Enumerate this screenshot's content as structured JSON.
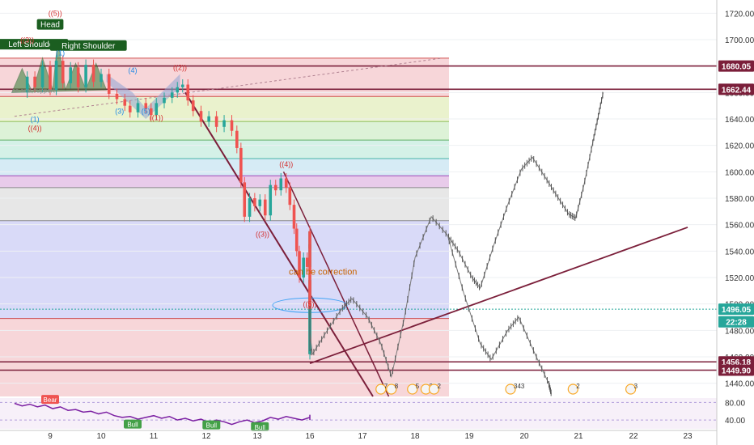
{
  "chart_data": {
    "type": "line",
    "title": "",
    "colors": {
      "up": "#26a69a",
      "down": "#ef5350",
      "wave_red": "#d32f2f",
      "wave_blue": "#1e88e5",
      "channel": "#7b1f3a",
      "level": "#7b1f3a",
      "projection": "#7a7a7a",
      "price_line": "#26a69a",
      "rsi": "#7b1fa2",
      "pattern_fill": "#2e7d32",
      "grid": "#eef0f3",
      "axis_text": "#333333"
    },
    "x_axis": {
      "type": "date",
      "ticks": [
        {
          "label": "9",
          "day": 9
        },
        {
          "label": "10",
          "day": 10
        },
        {
          "label": "11",
          "day": 11
        },
        {
          "label": "12",
          "day": 12
        },
        {
          "label": "13",
          "day": 13
        },
        {
          "label": "16",
          "day": 16
        },
        {
          "label": "17",
          "day": 17
        },
        {
          "label": "18",
          "day": 18
        },
        {
          "label": "19",
          "day": 19
        },
        {
          "label": "20",
          "day": 20
        },
        {
          "label": "21",
          "day": 21
        },
        {
          "label": "22",
          "day": 22
        },
        {
          "label": "23",
          "day": 23
        }
      ]
    },
    "y_axis": {
      "range": [
        1430,
        1730
      ],
      "ticks": [
        "1440.00",
        "1460.00",
        "1480.00",
        "1500.00",
        "1520.00",
        "1540.00",
        "1560.00",
        "1580.00",
        "1600.00",
        "1620.00",
        "1640.00",
        "1660.00",
        "1680.00",
        "1700.00",
        "1720.00"
      ]
    },
    "rsi_axis": {
      "range": [
        20,
        90
      ],
      "ticks": [
        "80.00",
        "40.00"
      ]
    },
    "price_labels": [
      {
        "text": "1680.05",
        "value": 1680.05,
        "style": "level"
      },
      {
        "text": "1662.44",
        "value": 1662.44,
        "style": "level"
      },
      {
        "text": "1496.05",
        "value": 1496.05,
        "style": "current"
      },
      {
        "text": "22:28",
        "value": 1486.5,
        "style": "current"
      },
      {
        "text": "1456.18",
        "value": 1456.18,
        "style": "level"
      },
      {
        "text": "1449.90",
        "value": 1449.9,
        "style": "level"
      }
    ],
    "horizontal_levels": [
      1680.05,
      1662.44,
      1456.18,
      1449.9
    ],
    "fib_bands": [
      {
        "from": 1657,
        "to": 1686,
        "color": "#f6cfd2"
      },
      {
        "from": 1638,
        "to": 1657,
        "color": "#e6f0c4"
      },
      {
        "from": 1624,
        "to": 1638,
        "color": "#d7f0d0"
      },
      {
        "from": 1610,
        "to": 1624,
        "color": "#cdeee3"
      },
      {
        "from": 1597,
        "to": 1610,
        "color": "#cfe7f3"
      },
      {
        "from": 1588,
        "to": 1597,
        "color": "#e4c2e6"
      },
      {
        "from": 1563,
        "to": 1588,
        "color": "#e3e3e3"
      },
      {
        "from": 1489,
        "to": 1563,
        "color": "#d2d4f7"
      },
      {
        "from": 1430,
        "to": 1489,
        "color": "#f6cfd2"
      }
    ],
    "fib_lines": [
      1686,
      1657,
      1638,
      1624,
      1610,
      1597,
      1588,
      1563,
      1489
    ],
    "series": [
      {
        "values": [
          [
            8.4,
            1660
          ],
          [
            8.55,
            1672
          ],
          [
            8.7,
            1664
          ],
          [
            8.85,
            1680
          ],
          [
            9.0,
            1662
          ],
          [
            9.12,
            1684
          ],
          [
            9.25,
            1667
          ],
          [
            9.4,
            1679
          ],
          [
            9.55,
            1664
          ],
          [
            9.7,
            1681
          ],
          [
            9.85,
            1668
          ],
          [
            10.0,
            1674
          ],
          [
            10.15,
            1659
          ],
          [
            10.3,
            1655
          ],
          [
            10.45,
            1650
          ],
          [
            10.55,
            1645
          ],
          [
            10.7,
            1652
          ],
          [
            10.85,
            1648
          ],
          [
            10.95,
            1643
          ],
          [
            11.05,
            1652
          ],
          [
            11.2,
            1656
          ],
          [
            11.35,
            1660
          ],
          [
            11.45,
            1664
          ],
          [
            11.55,
            1666
          ],
          [
            11.65,
            1654
          ],
          [
            11.75,
            1646
          ],
          [
            11.9,
            1638
          ],
          [
            12.05,
            1642
          ],
          [
            12.2,
            1634
          ],
          [
            12.35,
            1639
          ],
          [
            12.5,
            1631
          ],
          [
            12.6,
            1618
          ],
          [
            12.68,
            1592
          ],
          [
            12.75,
            1566
          ],
          [
            12.85,
            1580
          ],
          [
            12.95,
            1574
          ],
          [
            13.05,
            1579
          ],
          [
            13.15,
            1567
          ],
          [
            13.25,
            1590
          ],
          [
            13.35,
            1586
          ],
          [
            13.45,
            1595
          ],
          [
            13.55,
            1588
          ],
          [
            13.62,
            1575
          ],
          [
            13.7,
            1557
          ],
          [
            13.75,
            1540
          ],
          [
            13.8,
            1520
          ],
          [
            13.88,
            1535
          ],
          [
            13.95,
            1528
          ],
          [
            14.05,
            1555
          ],
          [
            14.15,
            1542
          ],
          [
            14.25,
            1545
          ],
          [
            14.35,
            1530
          ],
          [
            14.5,
            1522
          ],
          [
            14.58,
            1510
          ],
          [
            14.65,
            1485
          ],
          [
            14.7,
            1462
          ],
          [
            14.78,
            1478
          ],
          [
            14.85,
            1492
          ],
          [
            14.95,
            1508
          ],
          [
            15.05,
            1498
          ],
          [
            15.12,
            1513
          ],
          [
            15.2,
            1518
          ],
          [
            15.3,
            1505
          ],
          [
            15.4,
            1497
          ],
          [
            15.5,
            1492
          ],
          [
            15.6,
            1493
          ],
          [
            15.7,
            1496
          ]
        ]
      }
    ],
    "projection": [
      [
        15.45,
        1498
      ],
      [
        15.8,
        1478
      ],
      [
        16.05,
        1462
      ],
      [
        16.3,
        1478
      ],
      [
        16.6,
        1496
      ],
      [
        16.8,
        1504
      ],
      [
        17.1,
        1490
      ],
      [
        17.35,
        1470
      ],
      [
        17.55,
        1445
      ],
      [
        17.8,
        1490
      ],
      [
        18.0,
        1535
      ],
      [
        18.3,
        1566
      ],
      [
        18.6,
        1552
      ],
      [
        18.8,
        1540
      ],
      [
        19.05,
        1520
      ],
      [
        19.2,
        1512
      ],
      [
        19.45,
        1545
      ],
      [
        19.7,
        1575
      ],
      [
        19.95,
        1602
      ],
      [
        20.15,
        1611
      ],
      [
        20.4,
        1595
      ],
      [
        20.6,
        1582
      ],
      [
        20.82,
        1568
      ],
      [
        20.95,
        1565
      ],
      [
        21.1,
        1590
      ],
      [
        21.25,
        1620
      ],
      [
        21.35,
        1640
      ],
      [
        21.45,
        1660
      ]
    ],
    "down_projection": [
      [
        18.6,
        1552
      ],
      [
        18.9,
        1508
      ],
      [
        19.2,
        1470
      ],
      [
        19.4,
        1458
      ],
      [
        19.7,
        1480
      ],
      [
        19.9,
        1490
      ],
      [
        20.2,
        1462
      ],
      [
        20.45,
        1440
      ],
      [
        20.5,
        1432
      ]
    ],
    "channel": {
      "upper": [
        [
          11.6,
          1660
        ],
        [
          17.2,
          1430
        ]
      ],
      "lower": [
        [
          13.5,
          1600
        ],
        [
          17.5,
          1430
        ]
      ],
      "rising": [
        [
          15.5,
          1455
        ],
        [
          23.0,
          1558
        ]
      ],
      "dotted": [
        [
          8.3,
          1642
        ],
        [
          18.5,
          1686
        ]
      ]
    },
    "annotations": [
      {
        "text": "can be correction",
        "x": 16.25,
        "y": 1522,
        "color": "#c86400"
      },
      {
        "text": "((4))",
        "x": 13.55,
        "y": 1604,
        "color": "#d32f2f"
      },
      {
        "text": "((3))",
        "x": 13.1,
        "y": 1551,
        "color": "#d32f2f"
      },
      {
        "text": "((5))",
        "x": 14.55,
        "y": 1498,
        "color": "#d32f2f"
      },
      {
        "text": "((2))",
        "x": 11.5,
        "y": 1677,
        "color": "#d32f2f"
      },
      {
        "text": "((1))",
        "x": 11.05,
        "y": 1639,
        "color": "#d32f2f"
      },
      {
        "text": "((3))",
        "x": 8.55,
        "y": 1698,
        "color": "#d32f2f"
      },
      {
        "text": "((5))",
        "x": 9.1,
        "y": 1718,
        "color": "#d32f2f"
      },
      {
        "text": "((4))",
        "x": 8.7,
        "y": 1631,
        "color": "#d32f2f"
      },
      {
        "text": "(4)",
        "x": 10.6,
        "y": 1675,
        "color": "#1e88e5"
      },
      {
        "text": "(3)",
        "x": 10.35,
        "y": 1644,
        "color": "#1e88e5"
      },
      {
        "text": "(5)",
        "x": 10.85,
        "y": 1644,
        "color": "#1e88e5"
      },
      {
        "text": "(1)",
        "x": 8.7,
        "y": 1638,
        "color": "#1e88e5"
      },
      {
        "text": "(1)",
        "x": 9.2,
        "y": 1688,
        "color": "#1e88e5"
      }
    ],
    "pattern_labels": [
      {
        "text": "Head",
        "x": 9.0,
        "y": 1710
      },
      {
        "text": "Left Shoulder",
        "x": 8.65,
        "y": 1695
      },
      {
        "text": "Right Shoulder",
        "x": 9.75,
        "y": 1694
      }
    ],
    "event_markers": [
      {
        "text": "7",
        "x": 17.35
      },
      {
        "text": "8",
        "x": 17.55
      },
      {
        "text": "5",
        "x": 17.95
      },
      {
        "text": "2",
        "x": 18.2
      },
      {
        "text": "2",
        "x": 18.35
      },
      {
        "text": "343",
        "x": 19.75
      },
      {
        "text": "2",
        "x": 20.9
      },
      {
        "text": "3",
        "x": 21.95
      }
    ],
    "rsi_labels": [
      {
        "text": "Bear",
        "x": 9.0,
        "y": 86,
        "color": "#ef5350"
      },
      {
        "text": "Bull",
        "x": 10.6,
        "y": 30,
        "color": "#43a047"
      },
      {
        "text": "Bull",
        "x": 12.1,
        "y": 28,
        "color": "#43a047"
      },
      {
        "text": "Bull",
        "x": 13.05,
        "y": 24,
        "color": "#43a047"
      }
    ],
    "faint_texts": [
      {
        "text": "ce and support",
        "x": 8.25,
        "y": 1660
      }
    ],
    "rsi_values": [
      [
        8.3,
        78
      ],
      [
        8.45,
        72
      ],
      [
        8.6,
        76
      ],
      [
        8.75,
        70
      ],
      [
        8.9,
        74
      ],
      [
        9.05,
        66
      ],
      [
        9.2,
        70
      ],
      [
        9.35,
        62
      ],
      [
        9.5,
        64
      ],
      [
        9.65,
        58
      ],
      [
        9.8,
        60
      ],
      [
        9.95,
        54
      ],
      [
        10.1,
        58
      ],
      [
        10.25,
        50
      ],
      [
        10.4,
        46
      ],
      [
        10.55,
        48
      ],
      [
        10.7,
        42
      ],
      [
        10.85,
        46
      ],
      [
        11.0,
        50
      ],
      [
        11.15,
        44
      ],
      [
        11.3,
        48
      ],
      [
        11.45,
        40
      ],
      [
        11.6,
        44
      ],
      [
        11.75,
        38
      ],
      [
        11.9,
        42
      ],
      [
        12.05,
        34
      ],
      [
        12.2,
        40
      ],
      [
        12.35,
        36
      ],
      [
        12.5,
        30
      ],
      [
        12.65,
        36
      ],
      [
        12.8,
        40
      ],
      [
        12.95,
        34
      ],
      [
        13.1,
        38
      ],
      [
        13.25,
        46
      ],
      [
        13.4,
        42
      ],
      [
        13.55,
        48
      ],
      [
        13.7,
        44
      ],
      [
        13.85,
        40
      ],
      [
        14.0,
        46
      ],
      [
        14.15,
        42
      ],
      [
        14.3,
        48
      ],
      [
        14.45,
        44
      ],
      [
        14.6,
        40
      ],
      [
        14.75,
        46
      ],
      [
        14.9,
        50
      ],
      [
        15.05,
        46
      ],
      [
        15.2,
        52
      ],
      [
        15.35,
        48
      ],
      [
        15.5,
        52
      ],
      [
        15.65,
        50
      ]
    ]
  }
}
